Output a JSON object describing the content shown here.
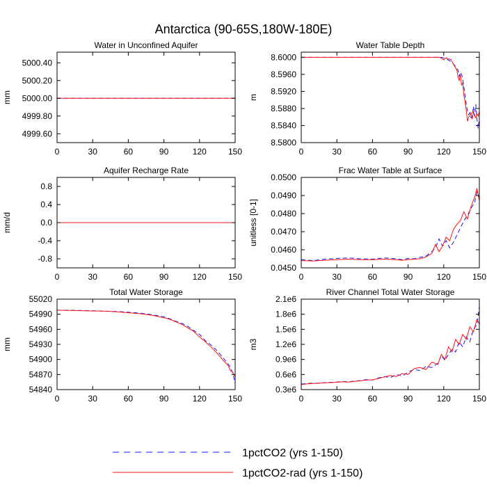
{
  "figure": {
    "title": "Antarctica (90-65S,180W-180E)"
  },
  "colors": {
    "series1": "#1010ff",
    "series2": "#ff1010",
    "frame": "#000000"
  },
  "legend": {
    "placement": "bottom-center",
    "items": [
      {
        "label": "1pctCO2 (yrs 1-150)",
        "color": "#1010ff",
        "style": "dashed"
      },
      {
        "label": "1pctCO2-rad (yrs 1-150)",
        "color": "#ff1010",
        "style": "solid"
      }
    ]
  },
  "chart_data": [
    {
      "type": "line",
      "title": "Water in Unconfined Aquifer",
      "xlabel": "",
      "ylabel": "mm",
      "xlim": [
        0,
        150
      ],
      "ylim": [
        4999.5,
        5000.52
      ],
      "xticks": [
        0,
        30,
        60,
        90,
        120,
        150
      ],
      "xtick_labels": [
        "0",
        "30",
        "60",
        "90",
        "120",
        "150"
      ],
      "yticks": [
        4999.6,
        4999.8,
        5000.0,
        5000.2,
        5000.4
      ],
      "ytick_labels": [
        "4999.60",
        "4999.80",
        "5000.00",
        "5000.20",
        "5000.40"
      ],
      "series": [
        {
          "style": "dashed",
          "color": "#1010ff",
          "x": [
            0,
            150
          ],
          "values": [
            5000.0,
            5000.0
          ]
        },
        {
          "style": "solid",
          "color": "#ff1010",
          "x": [
            0,
            150
          ],
          "values": [
            5000.0,
            5000.0
          ]
        }
      ]
    },
    {
      "type": "line",
      "title": "Water Table Depth",
      "xlabel": "",
      "ylabel": "m",
      "xlim": [
        0,
        150
      ],
      "ylim": [
        8.58,
        8.6012
      ],
      "xticks": [
        0,
        30,
        60,
        90,
        120,
        150
      ],
      "xtick_labels": [
        "0",
        "30",
        "60",
        "90",
        "120",
        "150"
      ],
      "yticks": [
        8.58,
        8.584,
        8.588,
        8.592,
        8.596,
        8.6
      ],
      "ytick_labels": [
        "8.5800",
        "8.5840",
        "8.5880",
        "8.5920",
        "8.5960",
        "8.6000"
      ],
      "series": [
        {
          "style": "dashed",
          "color": "#1010ff",
          "x": [
            0,
            118,
            122,
            125,
            128,
            130,
            132,
            133,
            134,
            135,
            136,
            137,
            138,
            139,
            140,
            141,
            142,
            143,
            144,
            145,
            146,
            147,
            148,
            149,
            150
          ],
          "values": [
            8.6,
            8.6,
            8.5997,
            8.5992,
            8.5985,
            8.5978,
            8.597,
            8.5955,
            8.5965,
            8.596,
            8.595,
            8.593,
            8.591,
            8.589,
            8.5875,
            8.5865,
            8.587,
            8.5858,
            8.586,
            8.5885,
            8.5862,
            8.589,
            8.5855,
            8.5833,
            8.5858
          ]
        },
        {
          "style": "solid",
          "color": "#ff1010",
          "x": [
            0,
            116,
            118,
            120,
            122,
            124,
            126,
            128,
            130,
            131,
            132,
            133,
            134,
            135,
            136,
            137,
            138,
            139,
            140,
            141,
            142,
            143,
            144,
            145,
            146,
            147,
            148,
            149,
            150
          ],
          "values": [
            8.6,
            8.6,
            8.5998,
            8.5994,
            8.5999,
            8.5996,
            8.5995,
            8.5985,
            8.5975,
            8.597,
            8.5955,
            8.5945,
            8.596,
            8.5935,
            8.594,
            8.591,
            8.5895,
            8.5875,
            8.585,
            8.586,
            8.5862,
            8.587,
            8.5855,
            8.5873,
            8.5862,
            8.5858,
            8.5868,
            8.5862,
            8.5873
          ]
        }
      ]
    },
    {
      "type": "line",
      "title": "Aquifer Recharge Rate",
      "xlabel": "",
      "ylabel": "mm/d",
      "xlim": [
        0,
        150
      ],
      "ylim": [
        -1.0,
        1.0
      ],
      "xticks": [
        0,
        30,
        60,
        90,
        120,
        150
      ],
      "xtick_labels": [
        "0",
        "30",
        "60",
        "90",
        "120",
        "150"
      ],
      "yticks": [
        -0.8,
        -0.4,
        0.0,
        0.4,
        0.8
      ],
      "ytick_labels": [
        "-0.8",
        "-0.4",
        "0.0",
        "0.4",
        "0.8"
      ],
      "series": [
        {
          "style": "dashed",
          "color": "#1010ff",
          "x": [
            0,
            150
          ],
          "values": [
            0.0,
            0.0
          ]
        },
        {
          "style": "solid",
          "color": "#ff1010",
          "x": [
            0,
            150
          ],
          "values": [
            0.0,
            0.0
          ]
        }
      ]
    },
    {
      "type": "line",
      "title": "Frac Water Table at Surface",
      "xlabel": "",
      "ylabel": "unitless [0-1]",
      "xlim": [
        0,
        150
      ],
      "ylim": [
        0.045,
        0.05
      ],
      "xticks": [
        0,
        30,
        60,
        90,
        120,
        150
      ],
      "xtick_labels": [
        "0",
        "30",
        "60",
        "90",
        "120",
        "150"
      ],
      "yticks": [
        0.045,
        0.046,
        0.047,
        0.048,
        0.049,
        0.05
      ],
      "ytick_labels": [
        "0.0450",
        "0.0460",
        "0.0470",
        "0.0480",
        "0.0490",
        "0.0500"
      ],
      "series": [
        {
          "style": "dashed",
          "color": "#1010ff",
          "x": [
            0,
            10,
            20,
            30,
            40,
            50,
            60,
            70,
            80,
            85,
            90,
            95,
            100,
            105,
            110,
            113,
            116,
            119,
            122,
            125,
            128,
            131,
            134,
            137,
            140,
            143,
            146,
            148,
            150
          ],
          "values": [
            0.04545,
            0.0454,
            0.04548,
            0.04552,
            0.04555,
            0.0455,
            0.04548,
            0.04555,
            0.0455,
            0.04545,
            0.04552,
            0.0455,
            0.04558,
            0.04565,
            0.0459,
            0.0461,
            0.0466,
            0.0462,
            0.0465,
            0.0461,
            0.0464,
            0.0468,
            0.0472,
            0.0476,
            0.0479,
            0.0483,
            0.0486,
            0.0492,
            0.0488
          ]
        },
        {
          "style": "solid",
          "color": "#ff1010",
          "x": [
            0,
            10,
            20,
            30,
            40,
            50,
            60,
            70,
            80,
            85,
            90,
            95,
            100,
            105,
            110,
            113,
            116,
            119,
            122,
            125,
            128,
            131,
            134,
            137,
            140,
            143,
            146,
            148,
            150
          ],
          "values": [
            0.0454,
            0.04538,
            0.04542,
            0.04545,
            0.04548,
            0.04545,
            0.04545,
            0.04548,
            0.04545,
            0.04542,
            0.04545,
            0.04548,
            0.0455,
            0.0456,
            0.0458,
            0.0463,
            0.0459,
            0.0462,
            0.0467,
            0.0465,
            0.0471,
            0.0474,
            0.0476,
            0.0481,
            0.0477,
            0.0484,
            0.0489,
            0.0494,
            0.0487
          ]
        }
      ]
    },
    {
      "type": "line",
      "title": "Total Water Storage",
      "xlabel": "",
      "ylabel": "mm",
      "xlim": [
        0,
        150
      ],
      "ylim": [
        54840,
        55020
      ],
      "xticks": [
        0,
        30,
        60,
        90,
        120,
        150
      ],
      "xtick_labels": [
        "0",
        "30",
        "60",
        "90",
        "120",
        "150"
      ],
      "yticks": [
        54840,
        54870,
        54900,
        54930,
        54960,
        54990,
        55020
      ],
      "ytick_labels": [
        "54840",
        "54870",
        "54900",
        "54930",
        "54960",
        "54990",
        "55020"
      ],
      "series": [
        {
          "style": "dashed",
          "color": "#1010ff",
          "x": [
            0,
            10,
            20,
            30,
            40,
            50,
            60,
            70,
            80,
            90,
            95,
            100,
            105,
            110,
            115,
            120,
            125,
            130,
            135,
            140,
            144,
            146,
            148,
            150
          ],
          "values": [
            54998,
            54998,
            54997.5,
            54997,
            54996,
            54995.5,
            54994,
            54992,
            54989,
            54985,
            54981,
            54976,
            54972,
            54966,
            54958,
            54950,
            54937,
            54928,
            54917,
            54903,
            54891,
            54885,
            54872,
            54852
          ]
        },
        {
          "style": "solid",
          "color": "#ff1010",
          "x": [
            0,
            10,
            20,
            30,
            40,
            50,
            60,
            70,
            80,
            90,
            95,
            100,
            105,
            110,
            115,
            120,
            125,
            130,
            135,
            140,
            144,
            146,
            148,
            150
          ],
          "values": [
            54998,
            54997.5,
            54997,
            54996.5,
            54996,
            54995,
            54993,
            54991,
            54988,
            54983,
            54980,
            54975,
            54970,
            54963,
            54956,
            54945,
            54935,
            54924,
            54912,
            54898,
            54888,
            54878,
            54874,
            54865
          ]
        }
      ]
    },
    {
      "type": "line",
      "title": "River Channel Total Water Storage",
      "xlabel": "",
      "ylabel": "m3",
      "xlim": [
        0,
        150
      ],
      "ylim": [
        300000,
        2100000
      ],
      "xticks": [
        0,
        30,
        60,
        90,
        120,
        150
      ],
      "xtick_labels": [
        "0",
        "30",
        "60",
        "90",
        "120",
        "150"
      ],
      "yticks": [
        300000,
        600000,
        900000,
        1200000,
        1500000,
        1800000,
        2100000
      ],
      "ytick_labels": [
        "0.3e6",
        "0.6e6",
        "0.9e6",
        "1.2e6",
        "1.5e6",
        "1.8e6",
        "2.1e6"
      ],
      "series": [
        {
          "style": "dashed",
          "color": "#1010ff",
          "x": [
            0,
            5,
            10,
            15,
            20,
            25,
            30,
            35,
            40,
            45,
            50,
            55,
            60,
            65,
            70,
            75,
            80,
            85,
            90,
            95,
            100,
            105,
            110,
            115,
            118,
            121,
            124,
            127,
            130,
            133,
            136,
            139,
            142,
            145,
            148,
            150
          ],
          "values": [
            410000,
            420000,
            430000,
            425000,
            440000,
            445000,
            450000,
            460000,
            455000,
            470000,
            480000,
            500000,
            490000,
            530000,
            560000,
            540000,
            600000,
            570000,
            650000,
            700000,
            680000,
            760000,
            740000,
            820000,
            980000,
            880000,
            1000000,
            1100000,
            1050000,
            1250000,
            1150000,
            1350000,
            1250000,
            1500000,
            1600000,
            1950000
          ]
        },
        {
          "style": "solid",
          "color": "#ff1010",
          "x": [
            0,
            5,
            10,
            15,
            20,
            25,
            30,
            35,
            40,
            45,
            50,
            55,
            60,
            65,
            70,
            75,
            80,
            85,
            90,
            95,
            100,
            105,
            110,
            115,
            118,
            121,
            124,
            127,
            130,
            133,
            136,
            139,
            142,
            145,
            148,
            150
          ],
          "values": [
            400000,
            415000,
            420000,
            430000,
            435000,
            440000,
            445000,
            455000,
            450000,
            465000,
            475000,
            490000,
            495000,
            520000,
            550000,
            580000,
            560000,
            620000,
            600000,
            720000,
            740000,
            700000,
            850000,
            800000,
            1000000,
            900000,
            1150000,
            1050000,
            1300000,
            1200000,
            1400000,
            1300000,
            1550000,
            1450000,
            1700000,
            1600000
          ]
        }
      ]
    }
  ]
}
